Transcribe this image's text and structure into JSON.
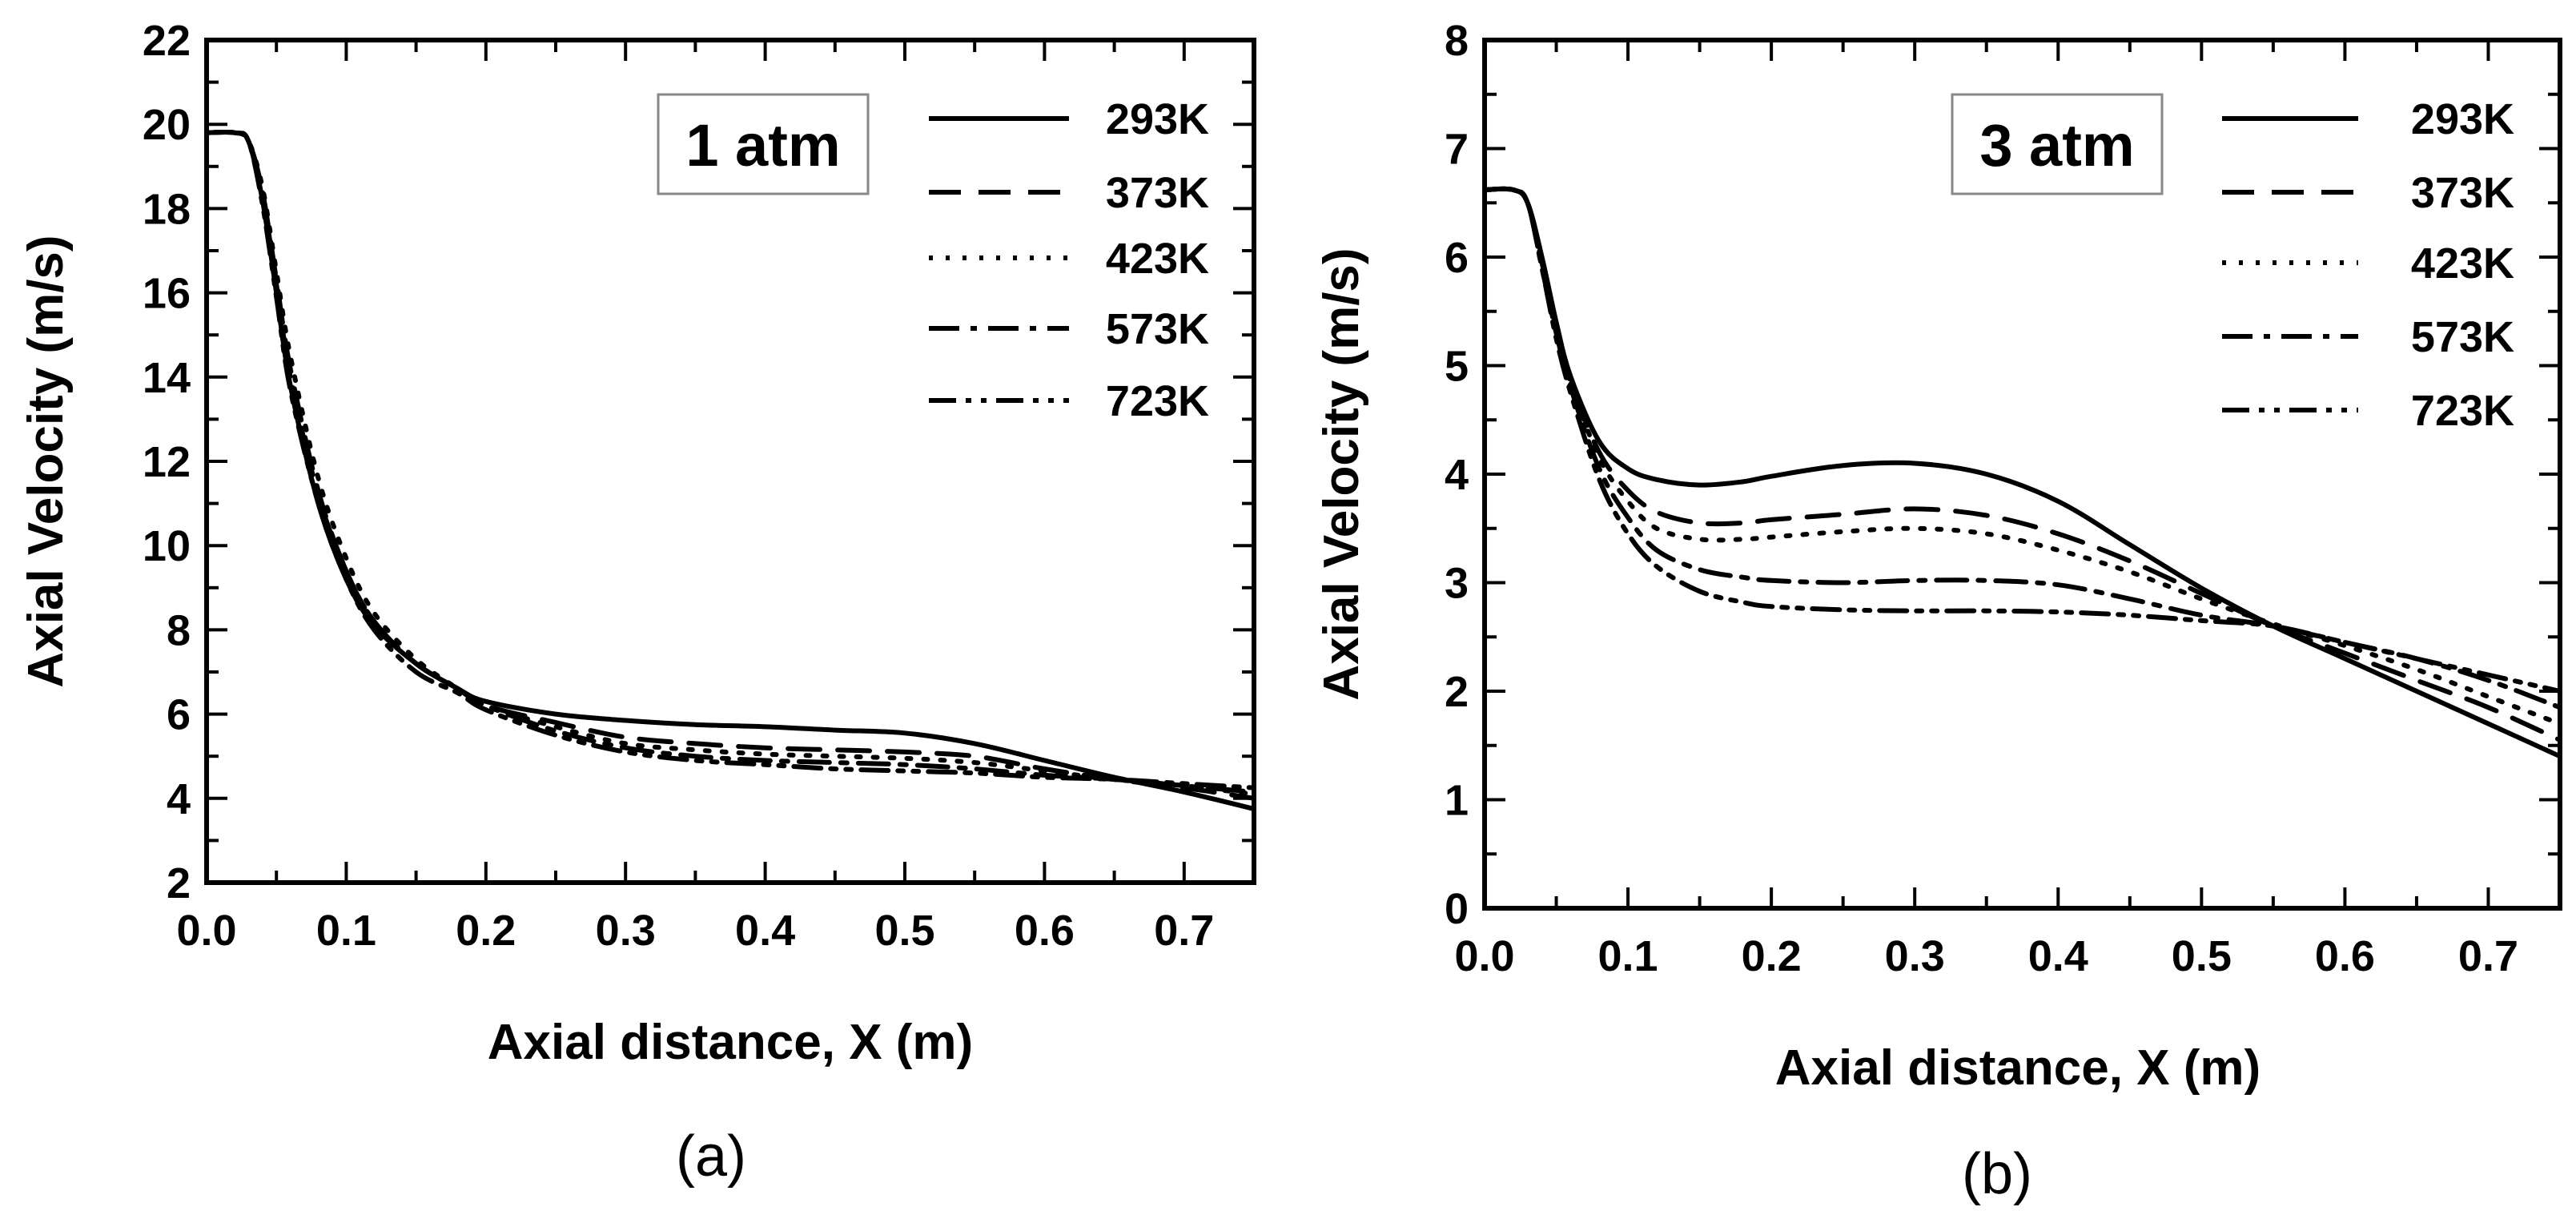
{
  "chart_data": [
    {
      "id": "a",
      "type": "line",
      "panel_label": "(a)",
      "annotation": "1 atm",
      "xlabel": "Axial distance, X (m)",
      "ylabel": "Axial Velocity (m/s)",
      "xlim": [
        0,
        0.75
      ],
      "ylim": [
        2,
        22
      ],
      "xticks": [
        "0.0",
        "0.1",
        "0.2",
        "0.3",
        "0.4",
        "0.5",
        "0.6",
        "0.7"
      ],
      "yticks": [
        "2",
        "4",
        "6",
        "8",
        "10",
        "12",
        "14",
        "16",
        "18",
        "20",
        "22"
      ],
      "legend_position": "top-right",
      "series": [
        {
          "name": "293K",
          "dash": "solid",
          "x": [
            0,
            0.02,
            0.03,
            0.04,
            0.05,
            0.06,
            0.08,
            0.1,
            0.12,
            0.15,
            0.18,
            0.2,
            0.25,
            0.3,
            0.35,
            0.4,
            0.45,
            0.5,
            0.55,
            0.6,
            0.65,
            0.7,
            0.75
          ],
          "y": [
            19.8,
            19.8,
            19.6,
            18.2,
            16.0,
            13.8,
            11.0,
            9.2,
            8.1,
            7.2,
            6.6,
            6.3,
            6.0,
            5.85,
            5.75,
            5.7,
            5.62,
            5.55,
            5.3,
            4.9,
            4.5,
            4.15,
            3.75
          ]
        },
        {
          "name": "373K",
          "dash": "dash",
          "x": [
            0,
            0.02,
            0.03,
            0.04,
            0.05,
            0.06,
            0.08,
            0.1,
            0.12,
            0.15,
            0.18,
            0.2,
            0.25,
            0.3,
            0.35,
            0.4,
            0.45,
            0.5,
            0.55,
            0.6,
            0.65,
            0.7,
            0.75
          ],
          "y": [
            19.8,
            19.8,
            19.6,
            18.4,
            16.3,
            14.2,
            11.3,
            9.4,
            8.2,
            7.2,
            6.6,
            6.2,
            5.8,
            5.45,
            5.3,
            5.2,
            5.15,
            5.1,
            5.0,
            4.7,
            4.45,
            4.25,
            4.0
          ]
        },
        {
          "name": "423K",
          "dash": "dot",
          "x": [
            0,
            0.02,
            0.03,
            0.04,
            0.05,
            0.06,
            0.08,
            0.1,
            0.12,
            0.15,
            0.18,
            0.2,
            0.25,
            0.3,
            0.35,
            0.4,
            0.45,
            0.5,
            0.55,
            0.6,
            0.65,
            0.7,
            0.75
          ],
          "y": [
            19.8,
            19.8,
            19.6,
            18.5,
            16.5,
            14.5,
            11.6,
            9.7,
            8.4,
            7.3,
            6.6,
            6.2,
            5.7,
            5.3,
            5.15,
            5.05,
            5.0,
            4.95,
            4.85,
            4.65,
            4.45,
            4.3,
            4.1
          ]
        },
        {
          "name": "573K",
          "dash": "dashdot",
          "x": [
            0,
            0.02,
            0.03,
            0.04,
            0.05,
            0.06,
            0.08,
            0.1,
            0.12,
            0.15,
            0.18,
            0.2,
            0.25,
            0.3,
            0.35,
            0.4,
            0.45,
            0.5,
            0.55,
            0.6,
            0.65,
            0.7,
            0.75
          ],
          "y": [
            19.8,
            19.8,
            19.6,
            18.3,
            16.2,
            14.0,
            11.2,
            9.4,
            8.2,
            7.2,
            6.6,
            6.2,
            5.6,
            5.2,
            5.0,
            4.9,
            4.85,
            4.8,
            4.7,
            4.55,
            4.45,
            4.3,
            4.15
          ]
        },
        {
          "name": "723K",
          "dash": "dashdotdot",
          "x": [
            0,
            0.02,
            0.03,
            0.04,
            0.05,
            0.06,
            0.08,
            0.1,
            0.12,
            0.15,
            0.18,
            0.2,
            0.25,
            0.3,
            0.35,
            0.4,
            0.45,
            0.5,
            0.55,
            0.6,
            0.65,
            0.7,
            0.75
          ],
          "y": [
            19.8,
            19.8,
            19.6,
            18.1,
            15.9,
            13.7,
            11.0,
            9.2,
            8.0,
            7.0,
            6.5,
            6.1,
            5.5,
            5.1,
            4.9,
            4.8,
            4.7,
            4.65,
            4.6,
            4.5,
            4.45,
            4.35,
            4.25
          ]
        }
      ]
    },
    {
      "id": "b",
      "type": "line",
      "panel_label": "(b)",
      "annotation": "3 atm",
      "xlabel": "Axial distance, X (m)",
      "ylabel": "Axial Velocity (m/s)",
      "xlim": [
        0,
        0.75
      ],
      "ylim": [
        0,
        8
      ],
      "xticks": [
        "0.0",
        "0.1",
        "0.2",
        "0.3",
        "0.4",
        "0.5",
        "0.6",
        "0.7"
      ],
      "yticks": [
        "0",
        "1",
        "2",
        "3",
        "4",
        "5",
        "6",
        "7",
        "8"
      ],
      "legend_position": "top-right",
      "series": [
        {
          "name": "293K",
          "dash": "solid",
          "x": [
            0,
            0.02,
            0.03,
            0.04,
            0.05,
            0.06,
            0.08,
            0.1,
            0.12,
            0.15,
            0.18,
            0.2,
            0.25,
            0.3,
            0.35,
            0.4,
            0.45,
            0.5,
            0.55,
            0.6,
            0.65,
            0.7,
            0.75
          ],
          "y": [
            6.62,
            6.62,
            6.5,
            6.0,
            5.4,
            4.9,
            4.3,
            4.05,
            3.95,
            3.9,
            3.93,
            3.98,
            4.08,
            4.1,
            4.0,
            3.75,
            3.35,
            2.95,
            2.6,
            2.3,
            2.0,
            1.7,
            1.4
          ]
        },
        {
          "name": "373K",
          "dash": "dash",
          "x": [
            0,
            0.02,
            0.03,
            0.04,
            0.05,
            0.06,
            0.08,
            0.1,
            0.12,
            0.15,
            0.18,
            0.2,
            0.25,
            0.3,
            0.35,
            0.4,
            0.45,
            0.5,
            0.55,
            0.6,
            0.65,
            0.7,
            0.75
          ],
          "y": [
            6.62,
            6.62,
            6.5,
            5.95,
            5.35,
            4.85,
            4.2,
            3.85,
            3.65,
            3.55,
            3.55,
            3.58,
            3.63,
            3.68,
            3.62,
            3.45,
            3.2,
            2.9,
            2.6,
            2.35,
            2.1,
            1.85,
            1.55
          ]
        },
        {
          "name": "423K",
          "dash": "dot",
          "x": [
            0,
            0.02,
            0.03,
            0.04,
            0.05,
            0.06,
            0.08,
            0.1,
            0.12,
            0.15,
            0.18,
            0.2,
            0.25,
            0.3,
            0.35,
            0.4,
            0.45,
            0.5,
            0.55,
            0.6,
            0.65,
            0.7,
            0.75
          ],
          "y": [
            6.62,
            6.62,
            6.5,
            5.95,
            5.35,
            4.85,
            4.15,
            3.75,
            3.5,
            3.4,
            3.4,
            3.42,
            3.47,
            3.5,
            3.45,
            3.3,
            3.1,
            2.85,
            2.62,
            2.42,
            2.2,
            1.95,
            1.7
          ]
        },
        {
          "name": "573K",
          "dash": "dashdot",
          "x": [
            0,
            0.02,
            0.03,
            0.04,
            0.05,
            0.06,
            0.08,
            0.1,
            0.12,
            0.15,
            0.18,
            0.2,
            0.25,
            0.3,
            0.35,
            0.4,
            0.45,
            0.5,
            0.55,
            0.6,
            0.65,
            0.7,
            0.75
          ],
          "y": [
            6.62,
            6.62,
            6.5,
            5.9,
            5.3,
            4.8,
            4.05,
            3.6,
            3.3,
            3.12,
            3.05,
            3.02,
            3.0,
            3.02,
            3.02,
            2.98,
            2.85,
            2.7,
            2.6,
            2.45,
            2.3,
            2.1,
            1.85
          ]
        },
        {
          "name": "723K",
          "dash": "dashdotdot",
          "x": [
            0,
            0.02,
            0.03,
            0.04,
            0.05,
            0.06,
            0.08,
            0.1,
            0.12,
            0.15,
            0.18,
            0.2,
            0.25,
            0.3,
            0.35,
            0.4,
            0.45,
            0.5,
            0.55,
            0.6,
            0.65,
            0.7,
            0.75
          ],
          "y": [
            6.62,
            6.62,
            6.5,
            5.9,
            5.25,
            4.75,
            3.95,
            3.45,
            3.15,
            2.92,
            2.82,
            2.78,
            2.75,
            2.74,
            2.74,
            2.73,
            2.7,
            2.65,
            2.6,
            2.45,
            2.3,
            2.15,
            2.0
          ]
        }
      ]
    }
  ]
}
